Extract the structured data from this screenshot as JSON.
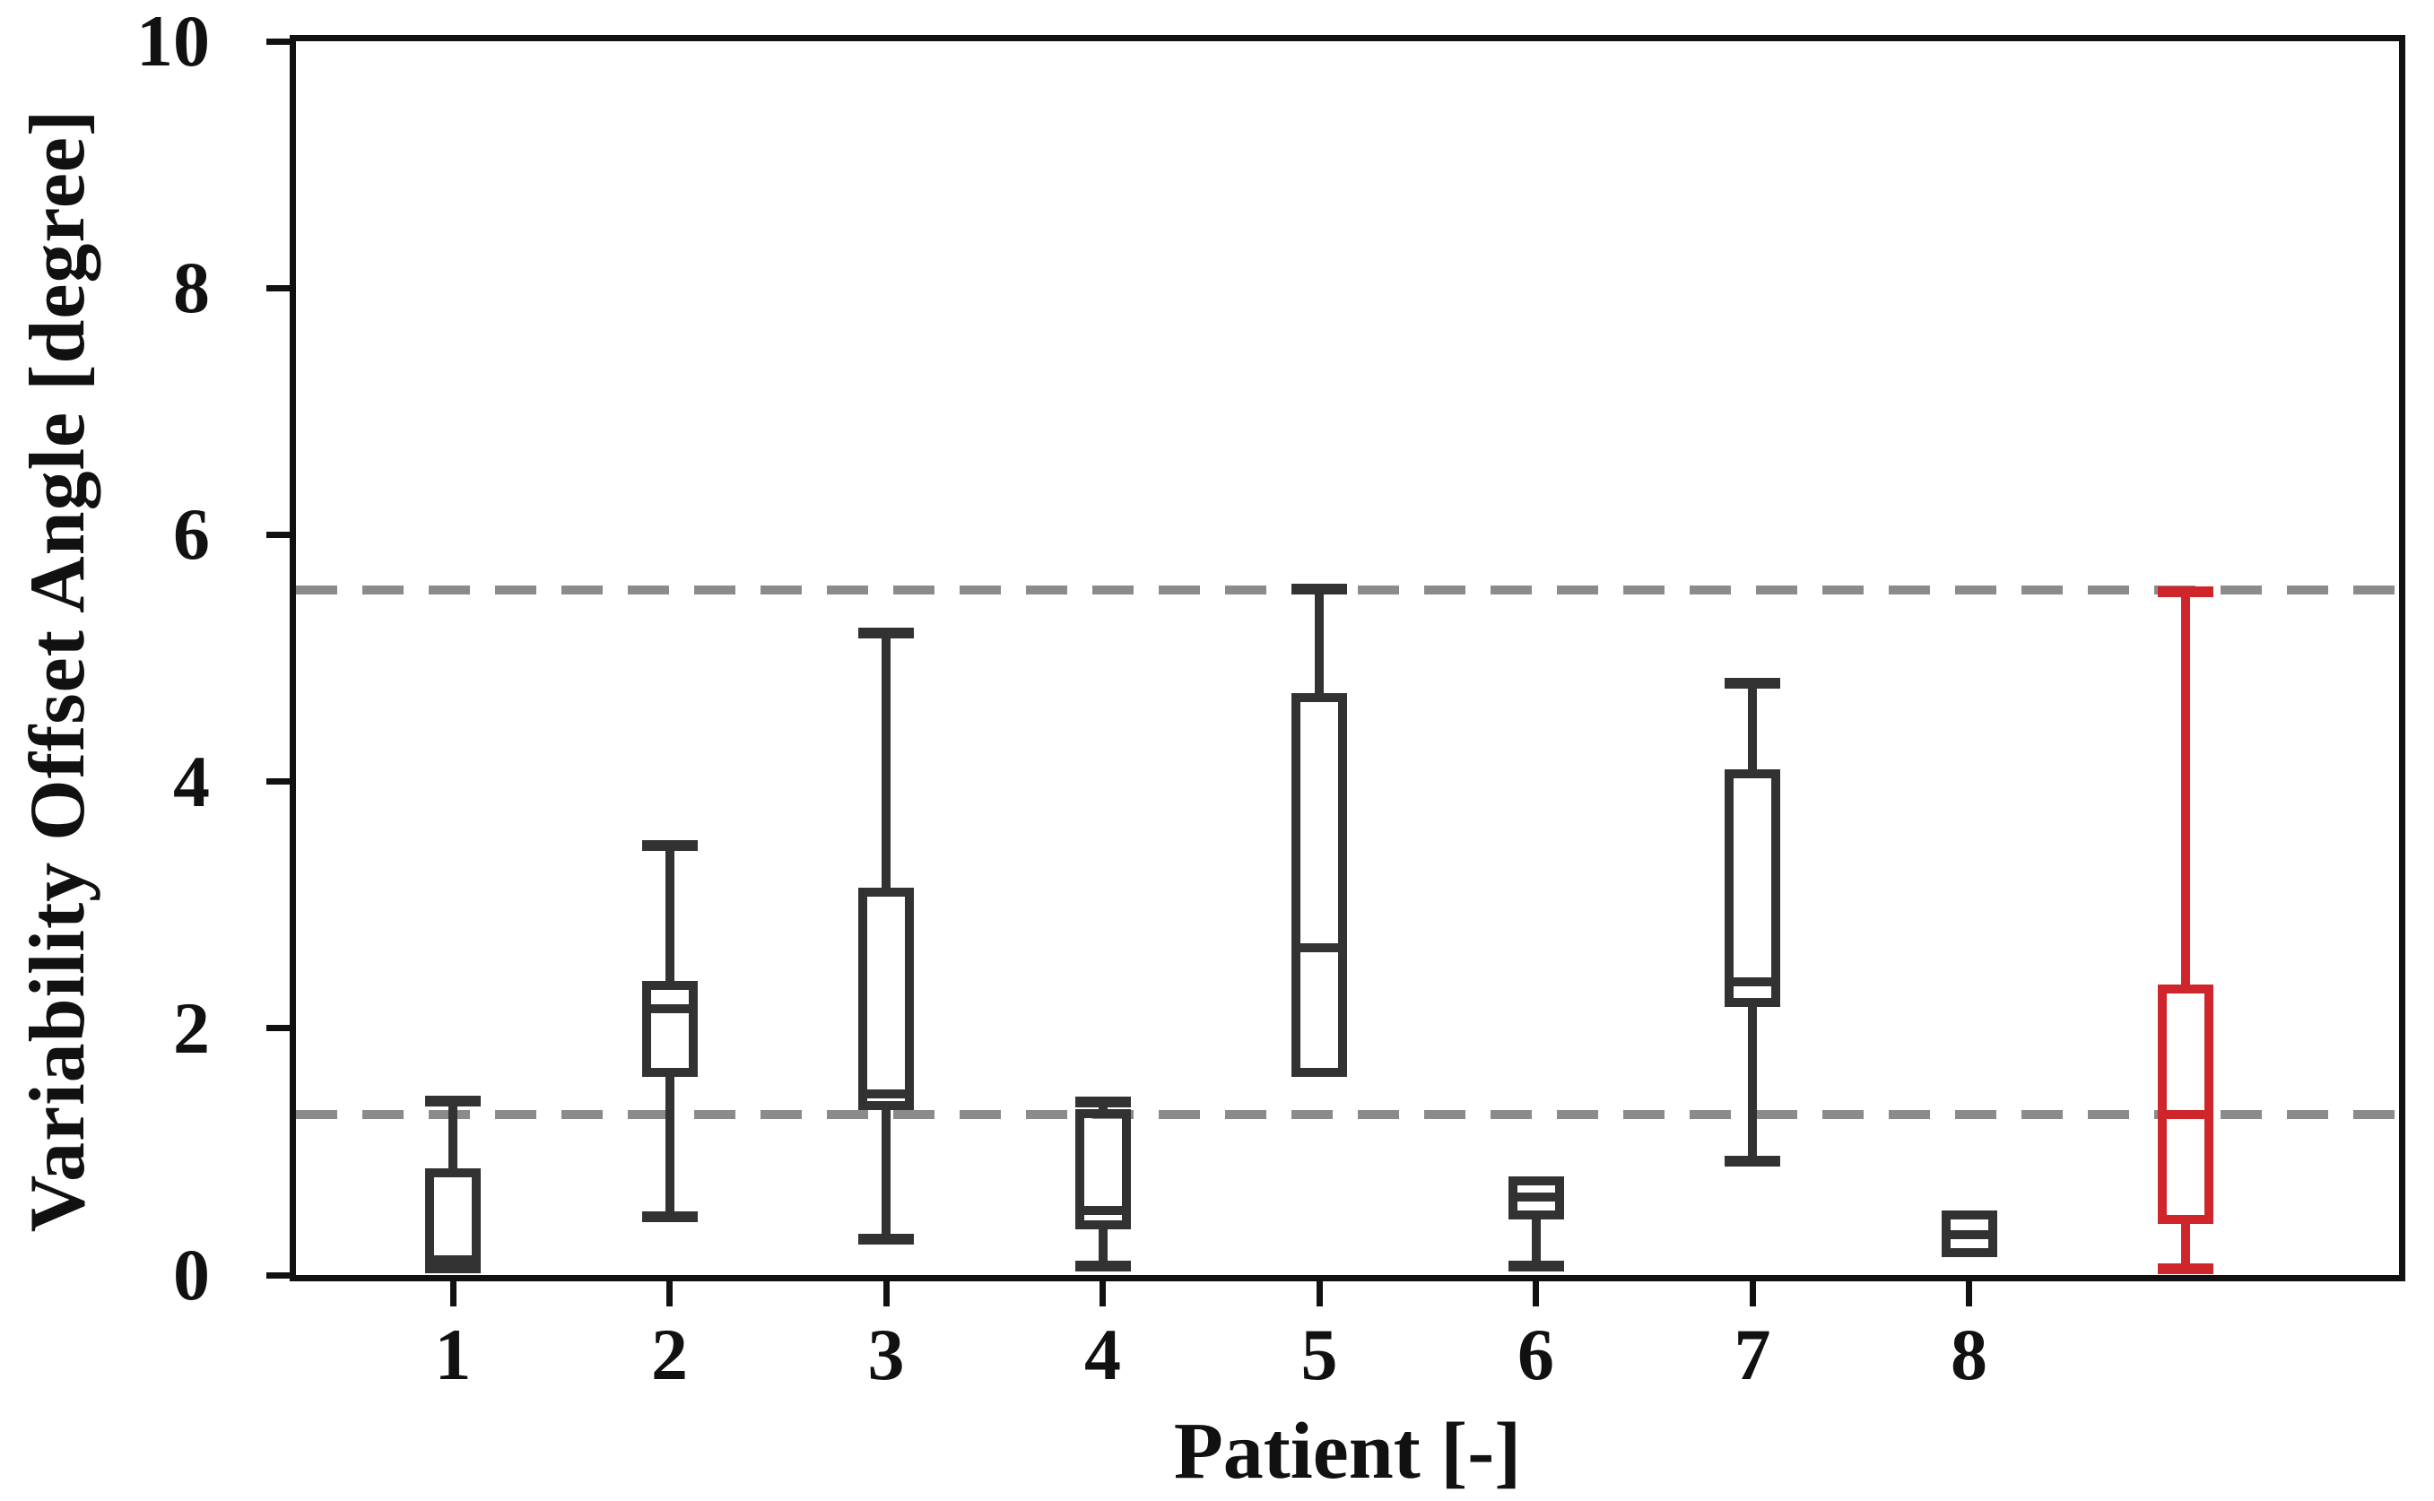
{
  "figure": {
    "background": "#ffffff"
  },
  "colors": {
    "axis": "#111111",
    "box_default": "#323232",
    "box_highlight": "#ce262b",
    "dashed_line": "#8b8b8b"
  },
  "chart_data": {
    "type": "boxplot",
    "title": "",
    "xlabel": "Patient [-]",
    "ylabel": "Variability Offset Angle [degree]",
    "ylim": [
      0,
      10
    ],
    "yticks": [
      0,
      2,
      4,
      6,
      8,
      10
    ],
    "ytick_labels": [
      "0",
      "2",
      "4",
      "6",
      "8",
      "10"
    ],
    "xtick_labels": [
      "1",
      "2",
      "3",
      "4",
      "5",
      "6",
      "7",
      "8",
      ""
    ],
    "grid": false,
    "legend": "none",
    "reference_lines": [
      {
        "name": "upper-threshold",
        "y": 5.55,
        "style": "dashed",
        "color": "#8b8b8b"
      },
      {
        "name": "lower-threshold",
        "y": 1.3,
        "style": "dashed",
        "color": "#8b8b8b"
      }
    ],
    "series": [
      {
        "name": "patient-1",
        "label": "1",
        "min": 0.05,
        "q1": 0.05,
        "median": 0.12,
        "q3": 0.83,
        "max": 1.41,
        "whisker_low": false,
        "whisker_high": true,
        "color": "#323232"
      },
      {
        "name": "patient-2",
        "label": "2",
        "min": 0.47,
        "q1": 1.64,
        "median": 2.16,
        "q3": 2.35,
        "max": 3.48,
        "whisker_low": true,
        "whisker_high": true,
        "color": "#323232"
      },
      {
        "name": "patient-3",
        "label": "3",
        "min": 0.29,
        "q1": 1.37,
        "median": 1.47,
        "q3": 3.1,
        "max": 5.2,
        "whisker_low": true,
        "whisker_high": true,
        "color": "#323232"
      },
      {
        "name": "patient-4",
        "label": "4",
        "min": 0.07,
        "q1": 0.41,
        "median": 0.52,
        "q3": 1.31,
        "max": 1.4,
        "whisker_low": true,
        "whisker_high": true,
        "color": "#323232"
      },
      {
        "name": "patient-5",
        "label": "5",
        "min": 1.64,
        "q1": 1.64,
        "median": 2.65,
        "q3": 4.68,
        "max": 5.56,
        "whisker_low": false,
        "whisker_high": true,
        "color": "#323232"
      },
      {
        "name": "patient-6",
        "label": "6",
        "min": 0.07,
        "q1": 0.49,
        "median": 0.63,
        "q3": 0.76,
        "max": 0.76,
        "whisker_low": true,
        "whisker_high": false,
        "color": "#323232"
      },
      {
        "name": "patient-7",
        "label": "7",
        "min": 0.92,
        "q1": 2.21,
        "median": 2.38,
        "q3": 4.06,
        "max": 4.8,
        "whisker_low": true,
        "whisker_high": true,
        "color": "#323232"
      },
      {
        "name": "patient-8",
        "label": "8",
        "min": 0.18,
        "q1": 0.18,
        "median": 0.33,
        "q3": 0.49,
        "max": 0.49,
        "whisker_low": false,
        "whisker_high": false,
        "color": "#323232"
      },
      {
        "name": "all-patients",
        "label": "",
        "min": 0.05,
        "q1": 0.45,
        "median": 1.3,
        "q3": 2.32,
        "max": 5.54,
        "whisker_low": true,
        "whisker_high": true,
        "color": "#ce262b"
      }
    ]
  }
}
